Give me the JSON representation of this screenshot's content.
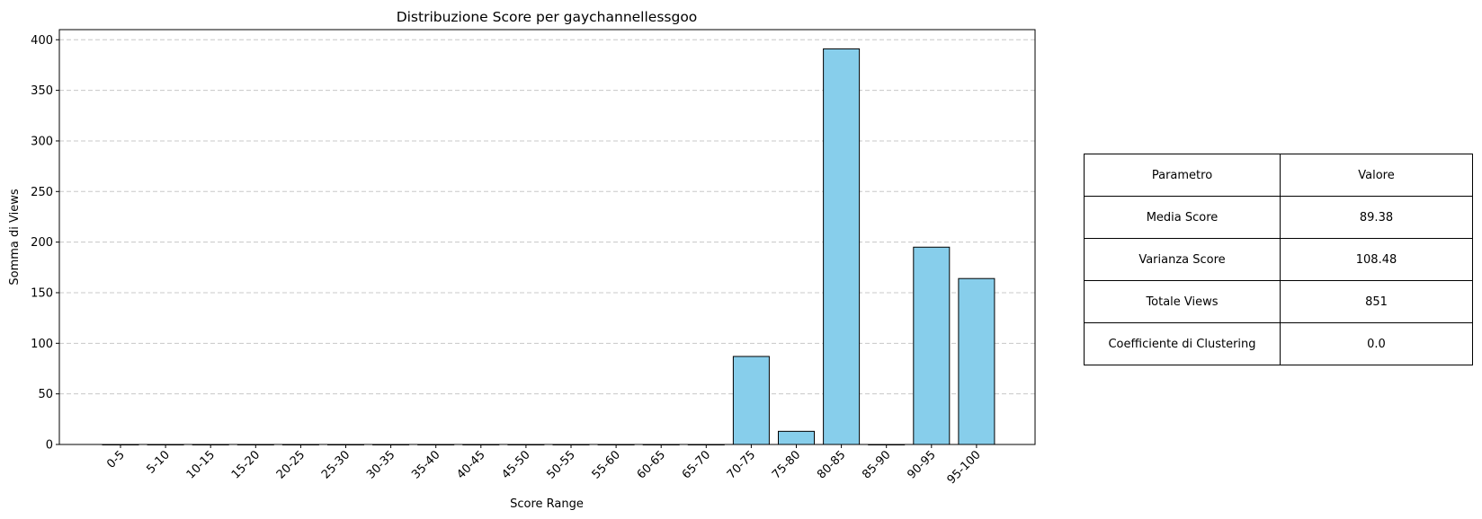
{
  "chart_data": {
    "type": "bar",
    "title": "Distribuzione Score per gaychannellessgoo",
    "xlabel": "Score Range",
    "ylabel": "Somma di Views",
    "categories": [
      "0-5",
      "5-10",
      "10-15",
      "15-20",
      "20-25",
      "25-30",
      "30-35",
      "35-40",
      "40-45",
      "45-50",
      "50-55",
      "55-60",
      "60-65",
      "65-70",
      "70-75",
      "75-80",
      "80-85",
      "85-90",
      "90-95",
      "95-100"
    ],
    "values": [
      0,
      0,
      0,
      0,
      0,
      0,
      0,
      0,
      0,
      0,
      0,
      0,
      0,
      0,
      87,
      13,
      391,
      0,
      195,
      164
    ],
    "ylim": [
      0,
      410
    ],
    "yticks": [
      0,
      50,
      100,
      150,
      200,
      250,
      300,
      350,
      400
    ],
    "grid": "y-dashed",
    "bar_color": "#87ceeb",
    "edge_color": "#000000"
  },
  "table": {
    "header": [
      "Parametro",
      "Valore"
    ],
    "rows": [
      [
        "Media Score",
        "89.38"
      ],
      [
        "Varianza Score",
        "108.48"
      ],
      [
        "Totale Views",
        "851"
      ],
      [
        "Coefficiente di Clustering",
        "0.0"
      ]
    ]
  }
}
